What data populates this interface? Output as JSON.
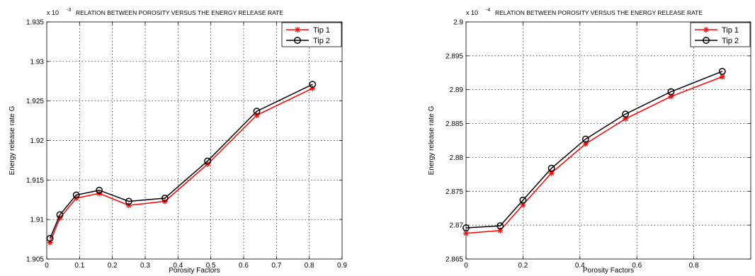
{
  "chart_data": [
    {
      "type": "line",
      "title": "RELATION BETWEEN POROSITY VERSUS THE ENERGY RELEASE RATE",
      "xlabel": "Porosity Factors",
      "ylabel": "Energy release rate G",
      "y_exponent_label": "x 10",
      "y_exponent": "-3",
      "xlim": [
        0,
        0.9
      ],
      "ylim": [
        1.905,
        1.935
      ],
      "xticks": [
        "0",
        "0.1",
        "0.2",
        "0.3",
        "0.4",
        "0.5",
        "0.6",
        "0.7",
        "0.8",
        "0.9"
      ],
      "yticks": [
        "1.905",
        "1.91",
        "1.915",
        "1.92",
        "1.925",
        "1.93",
        "1.935"
      ],
      "grid": true,
      "legend_position": "top-right",
      "series": [
        {
          "name": "Tip 1",
          "color": "#ff0000",
          "marker": "asterisk",
          "x": [
            0.01,
            0.04,
            0.09,
            0.16,
            0.25,
            0.36,
            0.49,
            0.64,
            0.81
          ],
          "y": [
            1.9071,
            1.9102,
            1.9127,
            1.9133,
            1.9118,
            1.9123,
            1.917,
            1.9232,
            1.9266
          ]
        },
        {
          "name": "Tip 2",
          "color": "#000000",
          "marker": "circle",
          "x": [
            0.01,
            0.04,
            0.09,
            0.16,
            0.25,
            0.36,
            0.49,
            0.64,
            0.81
          ],
          "y": [
            1.9076,
            1.9106,
            1.9131,
            1.9137,
            1.9123,
            1.9127,
            1.9174,
            1.9237,
            1.9271
          ]
        }
      ]
    },
    {
      "type": "line",
      "title": "RELATION BETWEEN POROSITY VERSUS THE ENERGY RELEASE RATE",
      "xlabel": "Porosity Factors",
      "ylabel": "Energy release rate G",
      "y_exponent_label": "x 10",
      "y_exponent": "-4",
      "xlim": [
        0,
        1.0
      ],
      "ylim": [
        2.865,
        2.9
      ],
      "xticks": [
        "0",
        "0.2",
        "0.4",
        "0.6",
        "0.8"
      ],
      "xtick_values": [
        0,
        0.2,
        0.4,
        0.6,
        0.8
      ],
      "yticks": [
        "2.865",
        "2.87",
        "2.875",
        "2.88",
        "2.885",
        "2.89",
        "2.895",
        "2.9"
      ],
      "grid": true,
      "legend_position": "top-right",
      "series": [
        {
          "name": "Tip 1",
          "color": "#ff0000",
          "marker": "asterisk",
          "x": [
            0.0,
            0.12,
            0.2,
            0.3,
            0.42,
            0.56,
            0.72,
            0.9
          ],
          "y": [
            2.8688,
            2.8692,
            2.873,
            2.8777,
            2.882,
            2.8857,
            2.889,
            2.8919
          ]
        },
        {
          "name": "Tip 2",
          "color": "#000000",
          "marker": "circle",
          "x": [
            0.0,
            0.12,
            0.2,
            0.3,
            0.42,
            0.56,
            0.72,
            0.9
          ],
          "y": [
            2.8696,
            2.8699,
            2.8737,
            2.8784,
            2.8827,
            2.8864,
            2.8897,
            2.8927
          ]
        }
      ]
    }
  ]
}
